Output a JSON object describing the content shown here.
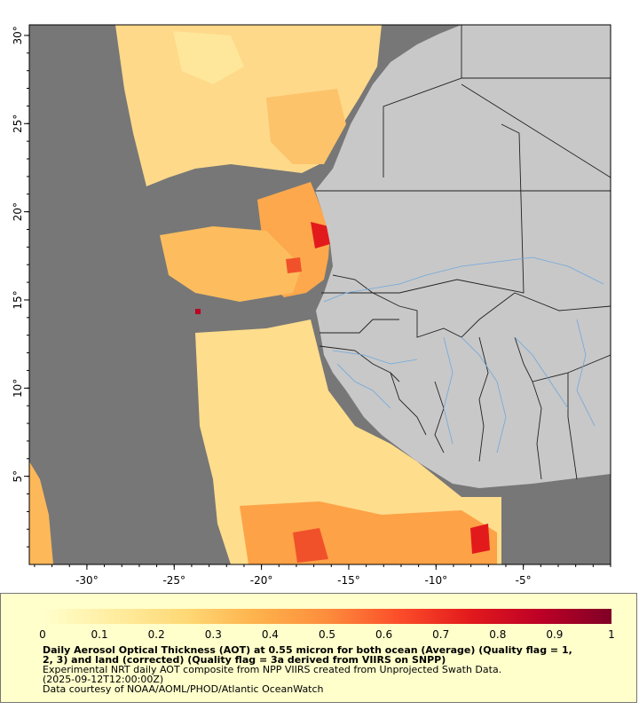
{
  "map": {
    "x_ticks": [
      {
        "value": -30,
        "label": "-30°"
      },
      {
        "value": -25,
        "label": "-25°"
      },
      {
        "value": -20,
        "label": "-20°"
      },
      {
        "value": -15,
        "label": "-15°"
      },
      {
        "value": -10,
        "label": "-10°"
      },
      {
        "value": -5,
        "label": "-5°"
      }
    ],
    "y_ticks": [
      {
        "value": 30,
        "label": "30°"
      },
      {
        "value": 25,
        "label": "25°"
      },
      {
        "value": 20,
        "label": "20°"
      },
      {
        "value": 15,
        "label": "15°"
      },
      {
        "value": 10,
        "label": "10°"
      },
      {
        "value": 5,
        "label": "5°"
      }
    ],
    "lon_range": [
      -33.3,
      -0.0
    ],
    "lat_range": [
      0.0,
      30.6
    ],
    "colors": {
      "no_data": "#777777",
      "land": "#c8c8c8",
      "boundary": "#222222",
      "river": "#6fa8dc"
    }
  },
  "legend": {
    "tick_labels": [
      "0",
      "0.1",
      "0.2",
      "0.3",
      "0.4",
      "0.5",
      "0.6",
      "0.7",
      "0.8",
      "0.9",
      "1"
    ],
    "range": [
      0,
      1
    ],
    "color_stops": [
      "#ffffcc",
      "#ffeda0",
      "#fed976",
      "#feb24c",
      "#fd8d3c",
      "#fc4e2a",
      "#e31a1c",
      "#bd0026",
      "#800026"
    ]
  },
  "caption": {
    "title_line1": "Daily Aerosol Optical Thickness (AOT) at 0.55 micron for both ocean (Average) (Quality flag = 1,",
    "title_line2": "2, 3) and land (corrected) (Quality flag = 3a derived from VIIRS on SNPP)",
    "line3": "Experimental NRT daily AOT composite from NPP VIIRS created from Unprojected Swath Data.",
    "line4": "(2025-09-12T12:00:00Z)",
    "line5": "Data courtesy of NOAA/AOML/PHOD/Atlantic OceanWatch"
  }
}
